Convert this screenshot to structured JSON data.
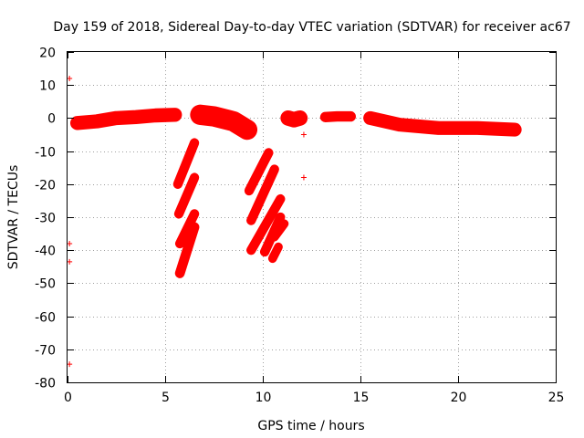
{
  "chart_data": {
    "type": "scatter",
    "title": "Day 159 of 2018, Sidereal Day-to-day VTEC variation (SDTVAR) for receiver ac67",
    "xlabel": "GPS time / hours",
    "ylabel": "SDTVAR / TECUs",
    "xlim": [
      0,
      25
    ],
    "ylim": [
      -80,
      20
    ],
    "grid": true,
    "legend": "none",
    "marker": "+",
    "marker_color": "#ff0000",
    "x_ticks": [
      0,
      5,
      10,
      15,
      20,
      25
    ],
    "y_ticks": [
      20,
      10,
      0,
      -10,
      -20,
      -30,
      -40,
      -50,
      -60,
      -70,
      -80
    ],
    "x_tick_labels": [
      "0",
      "5",
      "10",
      "15",
      "20",
      "25"
    ],
    "y_tick_labels": [
      "20",
      "10",
      "0",
      "-10",
      "-20",
      "-30",
      "-40",
      "-50",
      "-60",
      "-70",
      "-80"
    ],
    "series": [
      {
        "name": "arc-1",
        "type": "curve",
        "x": [
          0.5,
          1.5,
          2.5,
          3.5,
          4.5,
          5.5
        ],
        "y": [
          -1.5,
          -1.0,
          0.0,
          0.3,
          0.8,
          1.0
        ],
        "thickness": 2.6
      },
      {
        "name": "arc-2",
        "type": "curve",
        "x": [
          6.8,
          7.5,
          8.5,
          9.2
        ],
        "y": [
          1.0,
          0.5,
          -1.0,
          -3.5
        ],
        "thickness": 4.5
      },
      {
        "name": "arc-3",
        "type": "curve",
        "x": [
          11.3,
          11.6,
          11.9
        ],
        "y": [
          0.0,
          -0.5,
          0.0
        ],
        "thickness": 3.0
      },
      {
        "name": "arc-4",
        "type": "curve",
        "x": [
          13.2,
          13.8,
          14.5
        ],
        "y": [
          0.3,
          0.5,
          0.5
        ],
        "thickness": 1.5
      },
      {
        "name": "arc-5",
        "type": "curve",
        "x": [
          15.5,
          17.0,
          19.0,
          21.0,
          22.9
        ],
        "y": [
          0.0,
          -2.0,
          -3.0,
          -3.0,
          -3.5
        ],
        "thickness": 2.5
      },
      {
        "name": "stroke-6a",
        "type": "segment",
        "x": [
          5.65,
          6.5
        ],
        "y": [
          -20.0,
          -7.5
        ],
        "thickness": 1.2
      },
      {
        "name": "stroke-6b",
        "type": "segment",
        "x": [
          5.7,
          6.5
        ],
        "y": [
          -29.0,
          -18.0
        ],
        "thickness": 1.2
      },
      {
        "name": "stroke-6c",
        "type": "segment",
        "x": [
          5.75,
          6.5
        ],
        "y": [
          -38.0,
          -29.0
        ],
        "thickness": 1.2
      },
      {
        "name": "stroke-6d",
        "type": "segment",
        "x": [
          5.75,
          6.5
        ],
        "y": [
          -47.0,
          -33.0
        ],
        "thickness": 1.3
      },
      {
        "name": "stroke-10a",
        "type": "segment",
        "x": [
          9.3,
          10.3
        ],
        "y": [
          -22.0,
          -10.5
        ],
        "thickness": 1.2
      },
      {
        "name": "stroke-10b",
        "type": "segment",
        "x": [
          9.4,
          10.6
        ],
        "y": [
          -31.0,
          -15.5
        ],
        "thickness": 1.2
      },
      {
        "name": "stroke-10c",
        "type": "segment",
        "x": [
          9.4,
          10.9
        ],
        "y": [
          -40.0,
          -24.5
        ],
        "thickness": 1.2
      },
      {
        "name": "stroke-10d",
        "type": "segment",
        "x": [
          10.1,
          10.9
        ],
        "y": [
          -40.5,
          -30.0
        ],
        "thickness": 1.2
      },
      {
        "name": "stroke-10e",
        "type": "segment",
        "x": [
          10.6,
          11.1
        ],
        "y": [
          -36.0,
          -32.0
        ],
        "thickness": 1.0
      },
      {
        "name": "stroke-10f",
        "type": "segment",
        "x": [
          10.5,
          10.8
        ],
        "y": [
          -42.5,
          -39.0
        ],
        "thickness": 1.0
      },
      {
        "name": "outliers",
        "type": "points",
        "x": [
          0.1,
          0.1,
          0.1,
          0.1,
          12.1,
          12.1
        ],
        "y": [
          12.0,
          -38.0,
          -43.5,
          -74.5,
          -5.0,
          -18.0
        ]
      }
    ]
  }
}
